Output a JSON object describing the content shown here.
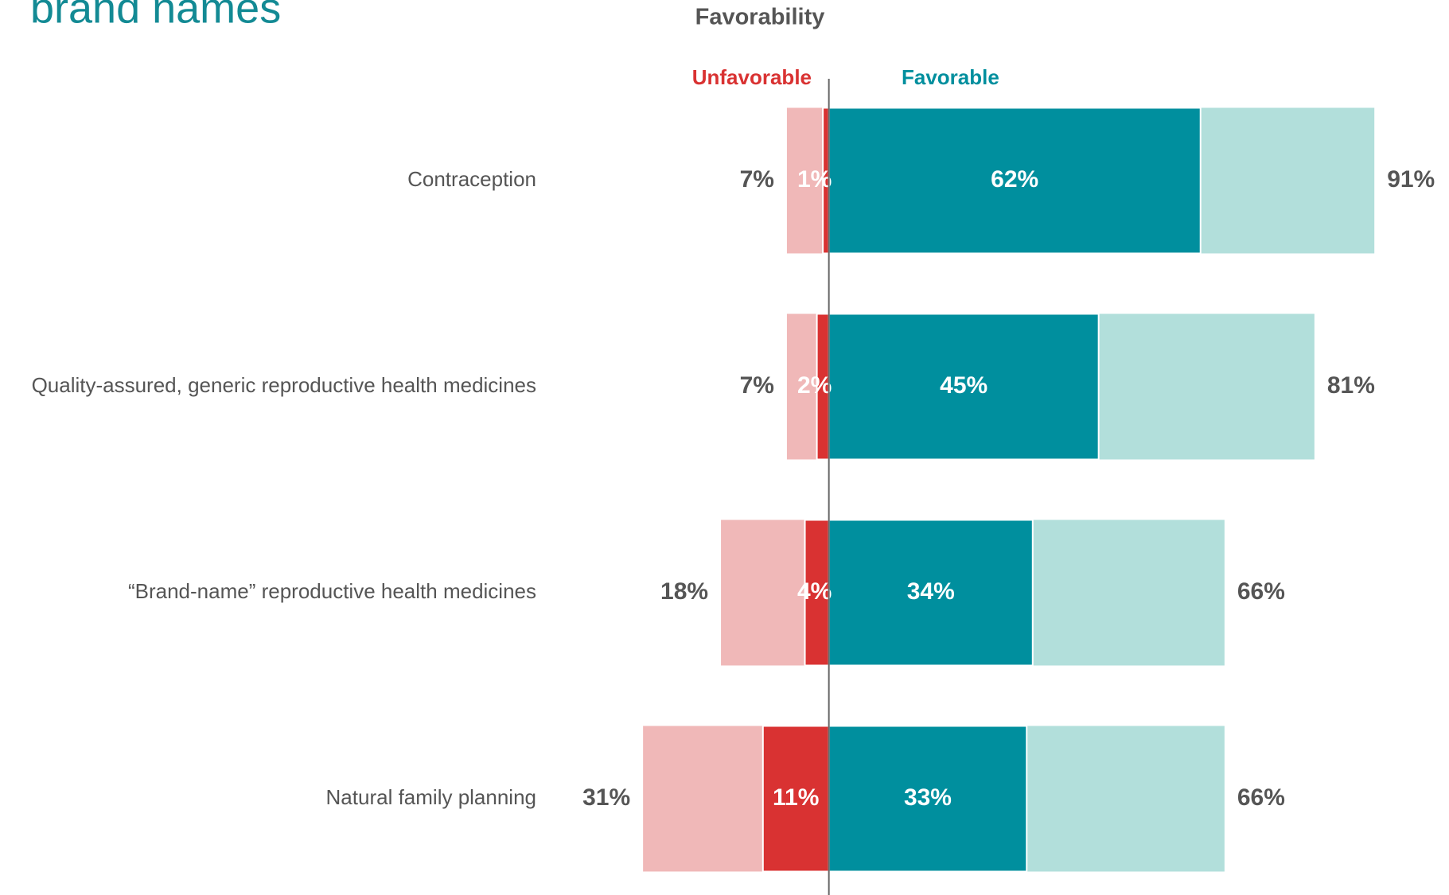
{
  "chart_data": {
    "type": "diverging-bar",
    "title": "brand names",
    "subtitle": "Favorability",
    "categories": [
      "Contraception",
      "Quality-assured, generic reproductive health medicines",
      "“Brand-name” reproductive health medicines",
      "Natural family planning"
    ],
    "unfavorable": {
      "name": "Unfavorable",
      "color": "#d93232",
      "strong_color": "#d93232",
      "total_color": "#f0b8b8",
      "total": [
        7,
        7,
        18,
        31
      ],
      "strong": [
        1,
        2,
        4,
        11
      ]
    },
    "favorable": {
      "name": "Favorable",
      "color": "#008f9e",
      "strong_color": "#008f9e",
      "total_color": "#b2dfdb",
      "total": [
        91,
        81,
        66,
        66
      ],
      "strong": [
        62,
        45,
        34,
        33
      ]
    },
    "xlim": [
      -50,
      100
    ]
  }
}
